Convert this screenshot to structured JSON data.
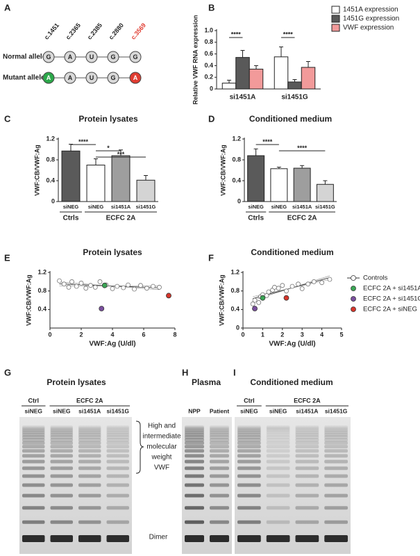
{
  "panel_labels": [
    "A",
    "B",
    "C",
    "D",
    "E",
    "F",
    "G",
    "H",
    "I"
  ],
  "allele_diagram": {
    "positions": [
      "c.1451",
      "c.2365",
      "c.2385",
      "c.2880",
      "c.3569"
    ],
    "position_colors": [
      "#222222",
      "#222222",
      "#222222",
      "#222222",
      "#e03c31"
    ],
    "alleles": [
      {
        "name": "Normal allele",
        "bases": [
          "G",
          "A",
          "U",
          "G",
          "G"
        ],
        "colors": [
          "#d9d9d9",
          "#d9d9d9",
          "#d9d9d9",
          "#d9d9d9",
          "#d9d9d9"
        ]
      },
      {
        "name": "Mutant allele",
        "bases": [
          "A",
          "A",
          "U",
          "G",
          "A"
        ],
        "colors": [
          "#2ca84a",
          "#d9d9d9",
          "#d9d9d9",
          "#d9d9d9",
          "#e03c31"
        ]
      }
    ]
  },
  "chart_data": [
    {
      "type": "bar",
      "y_label": "Relative VWF RNA expression",
      "categories": [
        "si1451A",
        "si1451G"
      ],
      "series": [
        {
          "name": "1451A expression",
          "color": "#ffffff",
          "values": [
            0.1,
            0.55
          ],
          "errors": [
            0.05,
            0.17
          ]
        },
        {
          "name": "1451G expression",
          "color": "#595959",
          "values": [
            0.54,
            0.12
          ],
          "errors": [
            0.12,
            0.04
          ]
        },
        {
          "name": "VWF expression",
          "color": "#f29a9a",
          "values": [
            0.34,
            0.37
          ],
          "errors": [
            0.06,
            0.1
          ]
        }
      ],
      "annotations": [
        {
          "text": "****",
          "category": 0,
          "from": 0,
          "to": 1
        },
        {
          "text": "****",
          "category": 1,
          "from": 0,
          "to": 1
        }
      ],
      "ylim": [
        0,
        1
      ],
      "yticks": [
        0,
        0.2,
        0.4,
        0.6,
        0.8,
        {
          "value": 1,
          "label": "1.0"
        }
      ]
    },
    {
      "type": "bar",
      "title": "Protein lysates",
      "y_label": "VWF:CB/VWF:Ag",
      "categories": [
        "siNEG",
        "siNEG",
        "si1451A",
        "si1451G"
      ],
      "groups": [
        {
          "label": "Ctrls",
          "from": 0,
          "to": 0
        },
        {
          "label": "ECFC 2A",
          "from": 1,
          "to": 3
        }
      ],
      "values": [
        0.97,
        0.7,
        0.88,
        0.41
      ],
      "errors": [
        0.13,
        0.12,
        0.11,
        0.09
      ],
      "colors": [
        "#5a5a5a",
        "#ffffff",
        "#9e9e9e",
        "#d4d4d4"
      ],
      "annotations": [
        {
          "text": "****",
          "from": 0,
          "to": 1
        },
        {
          "text": "*",
          "from": 1,
          "to": 2
        },
        {
          "text": "***",
          "from": 1,
          "to": 3
        }
      ],
      "ylim": [
        0,
        1.2
      ],
      "yticks": [
        0,
        0.4,
        0.8,
        1.2
      ]
    },
    {
      "type": "bar",
      "title": "Conditioned medium",
      "y_label": "VWF:CB/VWF:Ag",
      "categories": [
        "siNEG",
        "siNEG",
        "si1451A",
        "si1451G"
      ],
      "groups": [
        {
          "label": "Ctrls",
          "from": 0,
          "to": 0
        },
        {
          "label": "ECFC 2A",
          "from": 1,
          "to": 3
        }
      ],
      "values": [
        0.88,
        0.63,
        0.64,
        0.33
      ],
      "errors": [
        0.13,
        0.03,
        0.05,
        0.07
      ],
      "colors": [
        "#5a5a5a",
        "#ffffff",
        "#9e9e9e",
        "#d4d4d4"
      ],
      "annotations": [
        {
          "text": "****",
          "from": 0,
          "to": 1
        },
        {
          "text": "****",
          "from": 1,
          "to": 3
        }
      ],
      "ylim": [
        0,
        1.2
      ],
      "yticks": [
        0,
        0.4,
        0.8,
        1.2
      ]
    },
    {
      "type": "scatter",
      "title": "Protein lysates",
      "y_label": "VWF:CB/VWF:Ag",
      "x_label": "VWF:Ag (U/dl)",
      "series": [
        {
          "color": "#ffffff",
          "x": [
            0.6,
            0.9,
            1.2,
            1.4,
            1.7,
            2.0,
            2.3,
            2.6,
            2.9,
            3.2,
            3.6,
            4.0,
            4.3,
            4.7,
            5.0,
            5.4,
            5.8,
            6.2,
            6.6,
            7.0
          ],
          "values": [
            1.02,
            0.95,
            0.88,
            1.0,
            0.9,
            0.97,
            0.86,
            0.92,
            0.88,
            1.0,
            0.93,
            0.85,
            0.9,
            0.87,
            0.93,
            0.84,
            0.92,
            0.86,
            0.9,
            0.88
          ]
        },
        {
          "color": "#3aa655",
          "x": [
            3.5
          ],
          "values": [
            0.92
          ]
        },
        {
          "color": "#7a4f9e",
          "x": [
            3.3
          ],
          "values": [
            0.42
          ]
        },
        {
          "color": "#d6362b",
          "x": [
            7.6
          ],
          "values": [
            0.7
          ]
        }
      ],
      "xlim": [
        0,
        8
      ],
      "xticks": [
        0,
        2,
        4,
        6,
        8
      ],
      "ylim": [
        0,
        1.2
      ],
      "yticks": [
        0.4,
        0.8,
        1.2
      ]
    },
    {
      "type": "scatter",
      "title": "Conditioned medium",
      "y_label": "VWF:CB/VWF:Ag",
      "x_label": "VWF:Ag (U/dl)",
      "series": [
        {
          "name": "Controls",
          "color": "#ffffff",
          "x": [
            0.5,
            0.6,
            0.8,
            0.9,
            1.0,
            1.2,
            1.3,
            1.5,
            1.6,
            1.8,
            2.0,
            2.2,
            2.5,
            2.8,
            3.0,
            3.3,
            3.6,
            4.0,
            4.4
          ],
          "values": [
            0.52,
            0.6,
            0.55,
            0.68,
            0.72,
            0.7,
            0.78,
            0.82,
            0.88,
            0.86,
            0.92,
            0.8,
            0.9,
            0.95,
            0.85,
            0.95,
            1.0,
            0.98,
            1.05
          ]
        },
        {
          "name": "ECFC 2A + si1451A",
          "color": "#3aa655",
          "x": [
            1.0
          ],
          "values": [
            0.65
          ]
        },
        {
          "name": "ECFC 2A + si1451G",
          "color": "#7a4f9e",
          "x": [
            0.6
          ],
          "values": [
            0.42
          ]
        },
        {
          "name": "ECFC 2A + siNEG",
          "color": "#d6362b",
          "x": [
            2.2
          ],
          "values": [
            0.65
          ]
        }
      ],
      "xlim": [
        0,
        5
      ],
      "xticks": [
        0,
        1,
        2,
        3,
        4,
        5
      ],
      "ylim": [
        0,
        1.2
      ],
      "yticks": [
        0,
        0.4,
        0.8,
        1.2
      ]
    }
  ],
  "gel_g": {
    "title": "Protein lysates",
    "groups": [
      "Ctrl",
      "ECFC 2A"
    ],
    "lanes": [
      "siNEG",
      "siNEG",
      "si1451A",
      "si1451G"
    ]
  },
  "gel_h": {
    "title": "Plasma",
    "lanes": [
      "NPP",
      "Patient"
    ]
  },
  "gel_i": {
    "title": "Conditioned medium",
    "groups": [
      "Ctrl",
      "ECFC 2A"
    ],
    "lanes": [
      "siNEG",
      "siNEG",
      "si1451A",
      "si1451G"
    ]
  },
  "gel_annotations": {
    "bracket": [
      "High and",
      "intermediate",
      "molecular",
      "weight",
      "VWF"
    ],
    "dimer": "Dimer"
  }
}
